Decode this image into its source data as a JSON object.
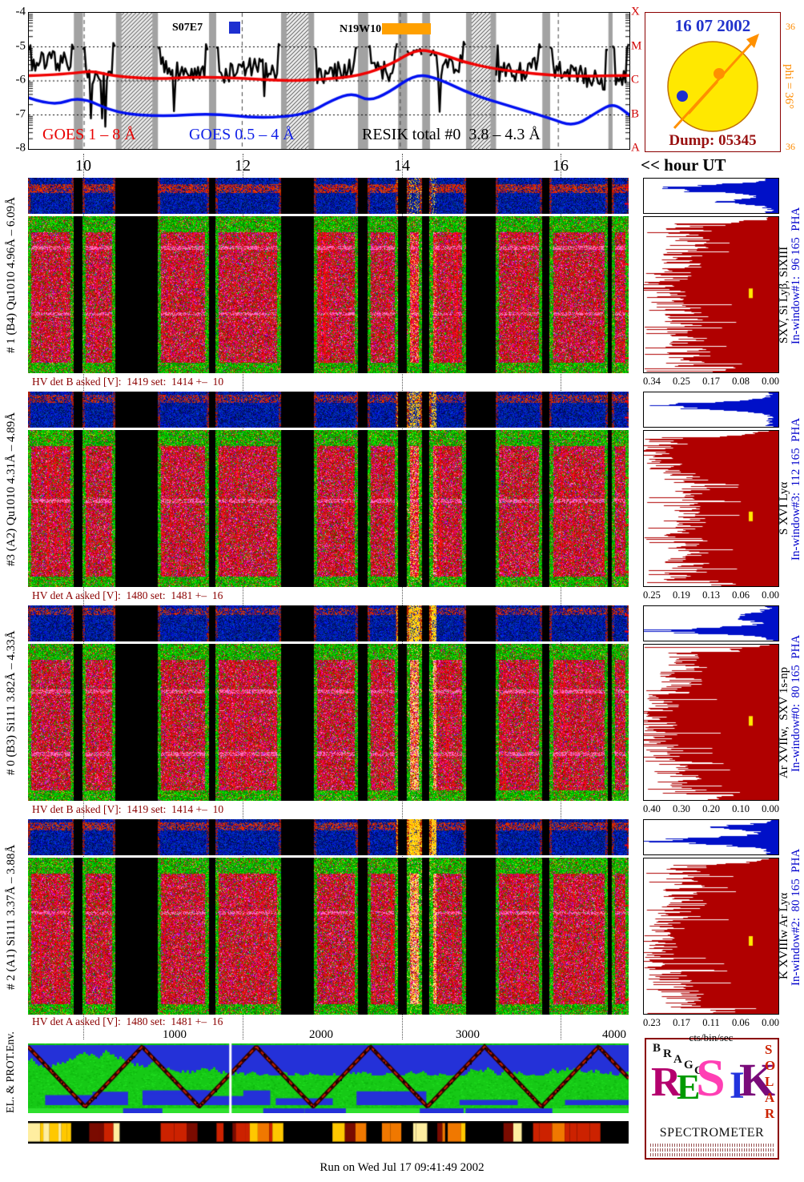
{
  "header": {
    "goes": {
      "y_ticks": [
        "-4",
        "-5",
        "-6",
        "-7",
        "-8"
      ],
      "class_labels": [
        "X",
        "M",
        "C",
        "B",
        "A"
      ],
      "legend": [
        {
          "text": "GOES 1 – 8 Å",
          "color": "#e80000"
        },
        {
          "text": "GOES 0.5 – 4 Å",
          "color": "#1020e8"
        },
        {
          "text": "RESIK total #0  3.8 – 4.3 Å",
          "color": "#000000"
        }
      ],
      "flare_markers": [
        {
          "label": "S07E7",
          "swatch_color": "#1d2fd0"
        },
        {
          "label": "N19W10",
          "swatch_color": "#ffa000"
        }
      ]
    },
    "sun": {
      "date": "16 07 2002",
      "dump": "Dump: 05345",
      "phi_label": "phi = 36°",
      "b_top": "36",
      "b_bottom": "36"
    }
  },
  "time_axis": {
    "ticks": [
      "10",
      "12",
      "14",
      "16"
    ],
    "label": "<< hour UT"
  },
  "channels": [
    {
      "label": "# 1 (B4) Qu1010 4.96Å – 6.09Å",
      "hv": "HV det B asked [V]:  1419 set:  1414 +–  10",
      "hist_axis": [
        "0.34",
        "0.25",
        "0.17",
        "0.08",
        "0.00"
      ],
      "line_label": "SXV, Si Lyβ, SiXIII",
      "window_label": "In-window#1:  96 165  PHA"
    },
    {
      "label": "#3 (A2) Qu1010 4.31Å – 4.89Å",
      "hv": "HV det A asked [V]:  1480 set:  1481 +–  16",
      "hist_axis": [
        "0.25",
        "0.19",
        "0.13",
        "0.06",
        "0.00"
      ],
      "line_label": "S XVI Lyα",
      "window_label": "In-window#3:  112 165  PHA"
    },
    {
      "label": "# 0 (B3) Si111 3.82Å – 4.33Å",
      "hv": "HV det B asked [V]:  1419 set:  1414 +–  10",
      "hist_axis": [
        "0.40",
        "0.30",
        "0.20",
        "0.10",
        "0.00"
      ],
      "line_label": "Ar XVIIw,  SXV 1s-np",
      "window_label": "In-window#0:  80 165  PHA"
    },
    {
      "label": "# 2 (A1) Si111 3.37Å – 3.88Å",
      "hv": "HV det A asked [V]:  1480 set:  1481 +–  16",
      "hist_axis": [
        "0.23",
        "0.17",
        "0.11",
        "0.06",
        "0.00"
      ],
      "line_label": "K XVIIIw Ar Lyα",
      "window_label": "In-window#2:  80 165  PHA"
    }
  ],
  "bin_axis": {
    "ticks": [
      "1000",
      "2000",
      "3000",
      "4000"
    ],
    "unit": "cts/bin/sec"
  },
  "env": {
    "label": "EL. & PROT.Env."
  },
  "logo": {
    "top_letters": [
      "B",
      "R",
      "A",
      "G",
      "G"
    ],
    "main_letters": [
      "R",
      "E",
      "S",
      "I",
      "K"
    ],
    "main_colors": [
      "#b4006e",
      "#009a00",
      "#ff3fb4",
      "#2233dd",
      "#7a0b7a"
    ],
    "side_letters": [
      "S",
      "O",
      "L",
      "A",
      "R"
    ],
    "side_color": "#cc2200",
    "caption": "SPECTROMETER"
  },
  "footer": "Run on Wed Jul 17 09:41:49 2002",
  "chart_data": {
    "type": "heatmap",
    "description": "RESIK solar X-ray spectrometer quicklook: GOES flux curves plus four crystal-channel spectrograms vs time, PHA strips, and per-channel count-rate histograms",
    "time_range_hours": [
      9.3,
      16.9
    ],
    "hour_ticks": [
      10,
      12,
      14,
      16
    ],
    "goes_flux_log10_range": [
      -8,
      -4
    ],
    "goes_classes": [
      "A",
      "B",
      "C",
      "M",
      "X"
    ],
    "goes_long": [
      [
        9.3,
        -5.85
      ],
      [
        9.8,
        -5.8
      ],
      [
        10.1,
        -5.7
      ],
      [
        10.35,
        -5.85
      ],
      [
        10.9,
        -5.95
      ],
      [
        11.4,
        -5.88
      ],
      [
        12.0,
        -5.92
      ],
      [
        12.5,
        -6.0
      ],
      [
        13.0,
        -5.96
      ],
      [
        13.5,
        -5.85
      ],
      [
        13.9,
        -5.5
      ],
      [
        14.2,
        -5.07
      ],
      [
        14.45,
        -5.15
      ],
      [
        14.8,
        -5.45
      ],
      [
        15.2,
        -5.65
      ],
      [
        15.7,
        -5.8
      ],
      [
        16.2,
        -5.87
      ],
      [
        16.9,
        -5.84
      ]
    ],
    "goes_short": [
      [
        9.3,
        -6.5
      ],
      [
        9.6,
        -6.75
      ],
      [
        9.95,
        -6.45
      ],
      [
        10.4,
        -6.95
      ],
      [
        11.0,
        -7.05
      ],
      [
        11.6,
        -6.95
      ],
      [
        12.2,
        -7.1
      ],
      [
        12.8,
        -7.0
      ],
      [
        13.15,
        -6.55
      ],
      [
        13.4,
        -6.35
      ],
      [
        13.6,
        -6.6
      ],
      [
        13.85,
        -6.35
      ],
      [
        14.2,
        -5.78
      ],
      [
        14.5,
        -5.95
      ],
      [
        14.9,
        -6.4
      ],
      [
        15.4,
        -6.75
      ],
      [
        15.9,
        -7.1
      ],
      [
        16.2,
        -7.35
      ],
      [
        16.5,
        -6.9
      ],
      [
        16.7,
        -6.65
      ],
      [
        16.9,
        -7.0
      ]
    ],
    "observation_segments_frac": [
      [
        0.0,
        0.075
      ],
      [
        0.09,
        0.145
      ],
      [
        0.215,
        0.3
      ],
      [
        0.312,
        0.42
      ],
      [
        0.475,
        0.548
      ],
      [
        0.565,
        0.615
      ],
      [
        0.63,
        0.655
      ],
      [
        0.668,
        0.728
      ],
      [
        0.778,
        0.855
      ],
      [
        0.868,
        0.965
      ],
      [
        0.972,
        1.0
      ]
    ],
    "flare": {
      "peak_hour": 14.2,
      "location": "N19W10",
      "frac_range": [
        0.613,
        0.68
      ]
    },
    "bins_total": 4096,
    "bin_ticks": [
      1000,
      2000,
      3000,
      4000
    ],
    "channels": [
      {
        "window": 1,
        "crystal": "Qu1010",
        "detector": "B4",
        "range_A": [
          4.96,
          6.09
        ],
        "hv_asked": 1419,
        "hv_set": 1414,
        "hv_tol": 10,
        "hist_max": 0.34,
        "seed": 11,
        "heat": 0.18,
        "line_rows": [
          0.2,
          0.62
        ],
        "band": [
          0.16,
          0.42
        ],
        "bandP": 0.6,
        "stripHeat": 0.25,
        "pha_bumps": [
          [
            0.28,
            0.8,
            0.1
          ],
          [
            0.65,
            0.35,
            0.08
          ]
        ],
        "red_bumps": [
          [
            0.45,
            0.2,
            0.08
          ]
        ],
        "marker_y": 0.46
      },
      {
        "window": 3,
        "crystal": "Qu1010",
        "detector": "A2",
        "range_A": [
          4.31,
          4.89
        ],
        "hv_asked": 1480,
        "hv_set": 1481,
        "hv_tol": 16,
        "hist_max": 0.25,
        "seed": 22,
        "heat": 0.26,
        "line_rows": [
          0.45
        ],
        "band": [
          0.08,
          0.3
        ],
        "bandP": 0.45,
        "stripHeat": 0.5,
        "pha_bumps": [
          [
            0.38,
            0.85,
            0.1
          ]
        ],
        "red_bumps": [
          [
            0.15,
            0.3,
            0.06
          ]
        ],
        "marker_y": 0.52
      },
      {
        "window": 0,
        "crystal": "Si111",
        "detector": "B3",
        "range_A": [
          3.82,
          4.33
        ],
        "hv_asked": 1419,
        "hv_set": 1414,
        "hv_tol": 10,
        "hist_max": 0.4,
        "seed": 33,
        "heat": 0.5,
        "line_rows": [
          0.3,
          0.7
        ],
        "band": [
          0.05,
          0.25
        ],
        "bandP": 0.4,
        "stripHeat": 0.8,
        "pha_bumps": [
          [
            0.7,
            0.9,
            0.08
          ],
          [
            0.3,
            0.3,
            0.1
          ]
        ],
        "red_bumps": [
          [
            0.55,
            0.25,
            0.18
          ]
        ],
        "marker_y": 0.46
      },
      {
        "window": 2,
        "crystal": "Si111",
        "detector": "A1",
        "range_A": [
          3.37,
          3.88
        ],
        "hv_asked": 1480,
        "hv_set": 1481,
        "hv_tol": 16,
        "hist_max": 0.23,
        "seed": 44,
        "heat": 0.55,
        "line_rows": [
          0.35
        ],
        "band": [
          0.07,
          0.3
        ],
        "bandP": 0.5,
        "stripHeat": 0.9,
        "pha_bumps": [
          [
            0.6,
            0.85,
            0.1
          ],
          [
            0.2,
            0.4,
            0.07
          ]
        ],
        "red_bumps": [
          [
            0.6,
            0.25,
            0.14
          ]
        ],
        "marker_y": 0.5
      }
    ],
    "env": {
      "zigzag_halfperiod_frac": 0.095,
      "white_gap_frac": 0.335,
      "seed": 99
    },
    "colorbar_seed": 55
  }
}
